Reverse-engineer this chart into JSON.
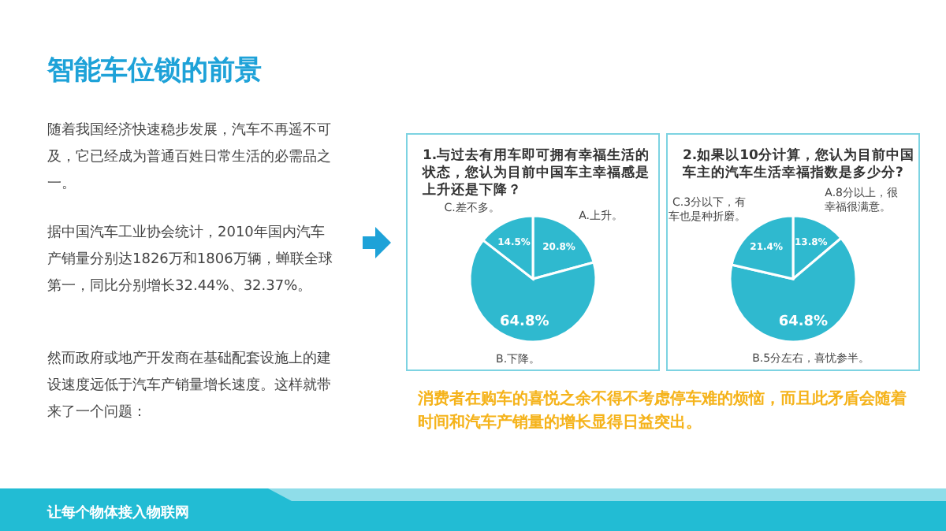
{
  "chart_data": [
    {
      "type": "other",
      "title": "智能车位锁的前景",
      "annotations": [
        "随着我国经济快速稳步发展，汽车不再遥不可及，它已经成为普通百姓日常生活的必需品之一。",
        "据中国汽车工业协会统计，2010年国内汽车产销量分别达1826万和1806万辆，蝉联全球第一，同比分别增长32.44%、32.37%。",
        "然而政府或地产开发商在基础配套设施上的建设速度远低于汽车产销量增长速度。这样就带来了一个问题：",
        "消费者在购车的喜悦之余不得不考虑停车难的烦恼，而且此矛盾会随着时间和汽车产销量的增长显得日益突出。",
        "让每个物体接入物联网"
      ]
    },
    {
      "type": "pie",
      "title": "1.与过去有用车即可拥有幸福生活的状态，您认为目前中国车主幸福感是上升还是下降？",
      "categories": [
        "A.上升。",
        "B.下降。",
        "C.差不多。"
      ],
      "values": [
        20.8,
        64.8,
        14.5
      ],
      "value_labels": [
        "20.8%",
        "64.8%",
        "14.5%"
      ],
      "colors": [
        "#2fb9cf",
        "#2fb9cf",
        "#2fb9cf"
      ]
    },
    {
      "type": "pie",
      "title": "2.如果以10分计算，您认为目前中国车主的汽车生活幸福指数是多少分?",
      "categories": [
        "A.8分以上，很幸福很满意。",
        "B.5分左右，喜忧参半。",
        "C.3分以下，有车也是种折磨。"
      ],
      "values": [
        13.8,
        64.8,
        21.4
      ],
      "value_labels": [
        "13.8%",
        "64.8%",
        "21.4%"
      ],
      "colors": [
        "#2fb9cf",
        "#2fb9cf",
        "#2fb9cf"
      ]
    }
  ]
}
